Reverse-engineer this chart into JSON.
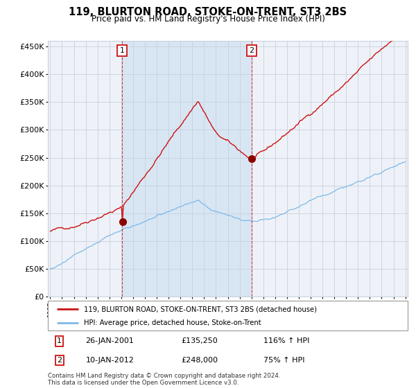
{
  "title": "119, BLURTON ROAD, STOKE-ON-TRENT, ST3 2BS",
  "subtitle": "Price paid vs. HM Land Registry's House Price Index (HPI)",
  "legend_line1": "119, BLURTON ROAD, STOKE-ON-TRENT, ST3 2BS (detached house)",
  "legend_line2": "HPI: Average price, detached house, Stoke-on-Trent",
  "footnote": "Contains HM Land Registry data © Crown copyright and database right 2024.\nThis data is licensed under the Open Government Licence v3.0.",
  "transaction1_label": "1",
  "transaction1_date": "26-JAN-2001",
  "transaction1_price": "£135,250",
  "transaction1_hpi": "116% ↑ HPI",
  "transaction2_label": "2",
  "transaction2_date": "10-JAN-2012",
  "transaction2_price": "£248,000",
  "transaction2_hpi": "75% ↑ HPI",
  "hpi_line_color": "#7eb8e8",
  "price_line_color": "#cc1111",
  "dot_color": "#8b0000",
  "vline_color": "#cc2222",
  "background_color": "#ffffff",
  "plot_bg_color": "#eef2f8",
  "highlight_bg_color": "#d8e6f4",
  "grid_color": "#c8d0dc",
  "ylim_min": 0,
  "ylim_max": 460000,
  "ytick_step": 50000,
  "year_start": 1995,
  "year_end": 2025,
  "transaction1_year": 2001.07,
  "transaction2_year": 2012.03
}
